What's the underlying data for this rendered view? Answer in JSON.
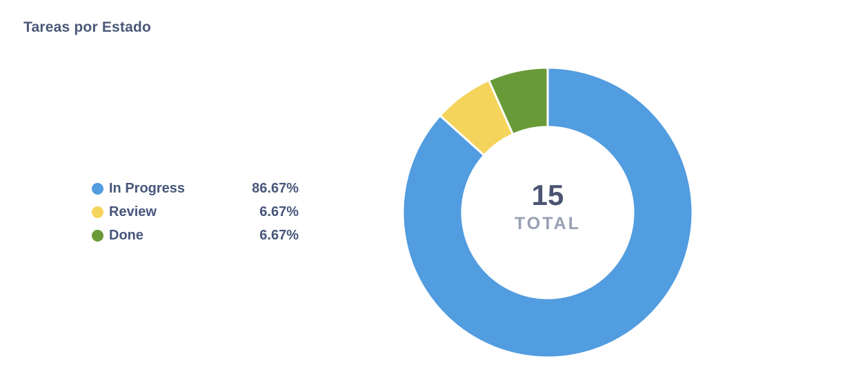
{
  "title": "Tareas por Estado",
  "chart_data": {
    "type": "pie",
    "subtype": "donut",
    "title": "Tareas por Estado",
    "categories": [
      "In Progress",
      "Review",
      "Done"
    ],
    "values": [
      13,
      1,
      1
    ],
    "total": 15,
    "percent_labels": [
      "86.67%",
      "6.67%",
      "6.67%"
    ],
    "colors": [
      "#529CE0",
      "#F5D45C",
      "#699A38"
    ],
    "start_angle_deg": 0,
    "direction": "clockwise",
    "inner_radius_ratio": 0.59,
    "slice_gap_color": "#FFFFFF",
    "legend_position": "left",
    "center_label": {
      "value": "15",
      "caption": "TOTAL"
    }
  },
  "legend": {
    "items": [
      {
        "label": "In Progress",
        "percent": "86.67%",
        "color": "#529CE0"
      },
      {
        "label": "Review",
        "percent": "6.67%",
        "color": "#F5D45C"
      },
      {
        "label": "Done",
        "percent": "6.67%",
        "color": "#699A38"
      }
    ]
  },
  "center": {
    "value": "15",
    "caption": "TOTAL"
  },
  "colors": {
    "title_text": "#4A5878",
    "legend_text": "#47567A",
    "center_value_text": "#4A5571",
    "center_caption_text": "#98A0B3",
    "background": "#FFFFFF"
  }
}
